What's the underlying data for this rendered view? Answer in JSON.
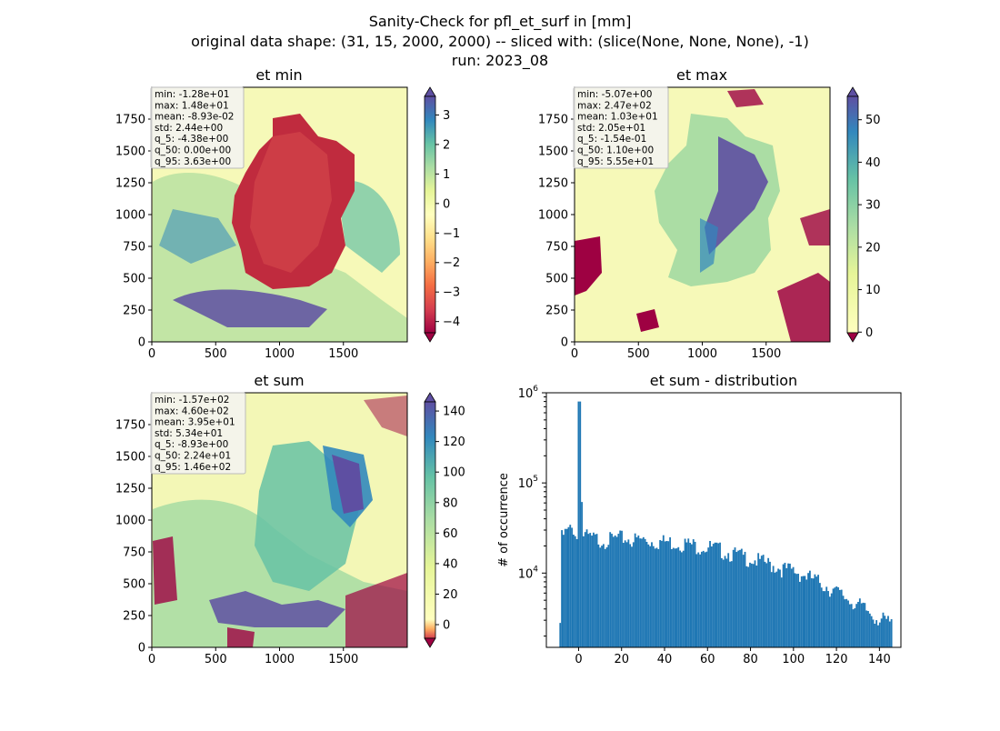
{
  "figure": {
    "suptitle_line1": "Sanity-Check for pfl_et_surf in [mm]",
    "suptitle_line2": "original data shape: (31, 15, 2000, 2000) -- sliced with: (slice(None, None, None), -1)",
    "suptitle_line3": "run: 2023_08"
  },
  "panels": {
    "et_min": {
      "title": "et min",
      "stats": [
        "min: -1.28e+01",
        "max: 1.48e+01",
        "mean: -8.93e-02",
        "std: 2.44e+00",
        "q_5: -4.38e+00",
        "q_50: 0.00e+00",
        "q_95: 3.63e+00"
      ],
      "colorbar": {
        "ticks": [
          "3",
          "2",
          "1",
          "0",
          "−1",
          "−2",
          "−3",
          "−4"
        ],
        "values": [
          3,
          2,
          1,
          0,
          -1,
          -2,
          -3,
          -4
        ],
        "vmin": -4.38,
        "vmax": 3.63
      }
    },
    "et_max": {
      "title": "et max",
      "stats": [
        "min: -5.07e+00",
        "max: 2.47e+02",
        "mean: 1.03e+01",
        "std: 2.05e+01",
        "q_5: -1.54e-01",
        "q_50: 1.10e+00",
        "q_95: 5.55e+01"
      ],
      "colorbar": {
        "ticks": [
          "50",
          "40",
          "30",
          "20",
          "10",
          "0"
        ],
        "values": [
          50,
          40,
          30,
          20,
          10,
          0
        ],
        "vmin": -0.154,
        "vmax": 55.5
      }
    },
    "et_sum": {
      "title": "et sum",
      "stats": [
        "min: -1.57e+02",
        "max: 4.60e+02",
        "mean: 3.95e+01",
        "std: 5.34e+01",
        "q_5: -8.93e+00",
        "q_50: 2.24e+01",
        "q_95: 1.46e+02"
      ],
      "colorbar": {
        "ticks": [
          "140",
          "120",
          "100",
          "80",
          "60",
          "40",
          "20",
          "0"
        ],
        "values": [
          140,
          120,
          100,
          80,
          60,
          40,
          20,
          0
        ],
        "vmin": -8.93,
        "vmax": 146
      }
    },
    "map_axes": {
      "xticks": [
        "0",
        "500",
        "1000",
        "1500"
      ],
      "yticks": [
        "0",
        "250",
        "500",
        "750",
        "1000",
        "1250",
        "1500",
        "1750"
      ]
    }
  },
  "chart_data": {
    "type": "bar",
    "title": "et sum - distribution",
    "ylabel": "# of occurrence",
    "yscale": "log",
    "xlim": [
      -15,
      150
    ],
    "ylim": [
      1500,
      1000000
    ],
    "xticks": [
      "0",
      "20",
      "40",
      "60",
      "80",
      "100",
      "120",
      "140"
    ],
    "ytick_labels": [
      "10^4",
      "10^5",
      "10^6"
    ],
    "bins": [
      -8.93,
      146
    ],
    "color": "#1f77b4",
    "x": [
      -8,
      -6,
      -4,
      -2,
      -0.5,
      0,
      2,
      5,
      10,
      15,
      20,
      25,
      30,
      35,
      40,
      45,
      50,
      55,
      60,
      65,
      70,
      75,
      80,
      85,
      90,
      95,
      100,
      105,
      110,
      115,
      120,
      125,
      130,
      135,
      140,
      145
    ],
    "values": [
      22000,
      25000,
      27000,
      28000,
      20000,
      800000,
      24000,
      22000,
      21000,
      21000,
      22000,
      21000,
      21000,
      20000,
      20000,
      19500,
      19000,
      18000,
      17500,
      16500,
      15000,
      14000,
      13000,
      12000,
      11000,
      10000,
      9500,
      8500,
      7500,
      6500,
      5500,
      4700,
      4000,
      3300,
      2800,
      2500
    ]
  }
}
